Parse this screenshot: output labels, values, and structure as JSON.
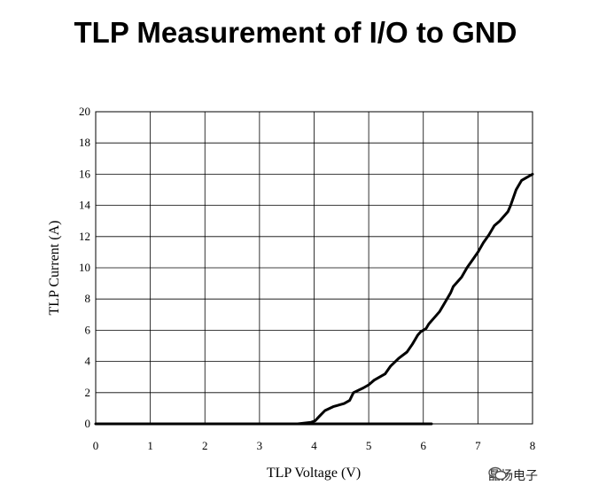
{
  "chart_data": {
    "type": "line",
    "title": "TLP Measurement of I/O to GND",
    "xlabel": "TLP Voltage (V)",
    "ylabel": "TLP Current (A)",
    "xlim": [
      0,
      8
    ],
    "ylim": [
      0,
      20
    ],
    "x_ticks": [
      "0",
      "1",
      "2",
      "3",
      "4",
      "5",
      "6",
      "7",
      "8"
    ],
    "y_ticks": [
      "0",
      "2",
      "4",
      "6",
      "8",
      "10",
      "12",
      "14",
      "16",
      "18",
      "20"
    ],
    "grid": true,
    "series": [
      {
        "x": [
          0,
          6.15
        ],
        "y": [
          0,
          0
        ],
        "color": "#000000"
      },
      {
        "x": [
          3.7,
          3.95,
          4.02,
          4.1,
          4.2,
          4.35,
          4.55,
          4.65,
          4.72,
          4.9,
          5.0,
          5.1,
          5.3,
          5.4,
          5.55,
          5.7,
          5.8,
          5.9,
          5.95,
          6.05,
          6.1,
          6.2,
          6.3,
          6.4,
          6.5,
          6.55,
          6.7,
          6.8,
          6.9,
          7.0,
          7.1,
          7.2,
          7.3,
          7.4,
          7.55,
          7.6,
          7.7,
          7.8,
          7.9,
          8.0
        ],
        "y": [
          0,
          0.1,
          0.2,
          0.5,
          0.85,
          1.1,
          1.3,
          1.5,
          2.0,
          2.3,
          2.5,
          2.8,
          3.2,
          3.7,
          4.2,
          4.6,
          5.1,
          5.7,
          5.9,
          6.1,
          6.4,
          6.8,
          7.2,
          7.8,
          8.4,
          8.8,
          9.4,
          10.0,
          10.5,
          11.0,
          11.6,
          12.1,
          12.7,
          13.0,
          13.6,
          14.0,
          15.0,
          15.6,
          15.8,
          16.0
        ],
        "color": "#000000"
      }
    ]
  },
  "watermark": {
    "text": "晶扬电子",
    "icon": "wechat-icon"
  }
}
